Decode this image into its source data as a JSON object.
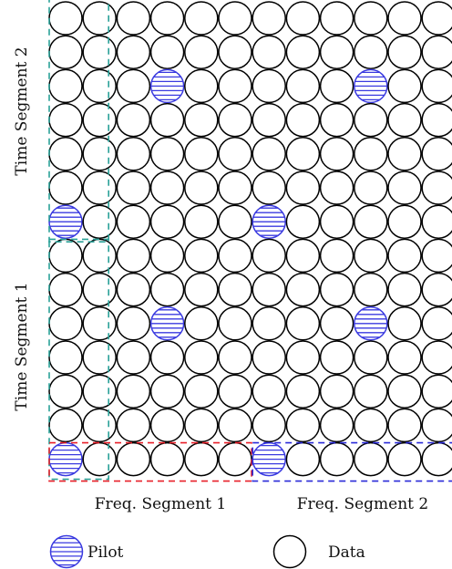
{
  "grid": {
    "rows": 14,
    "cols": 12
  },
  "pilots": [
    {
      "row": 2,
      "col": 3
    },
    {
      "row": 2,
      "col": 9
    },
    {
      "row": 6,
      "col": 0
    },
    {
      "row": 6,
      "col": 6
    },
    {
      "row": 9,
      "col": 3
    },
    {
      "row": 9,
      "col": 9
    },
    {
      "row": 13,
      "col": 0
    },
    {
      "row": 13,
      "col": 6
    }
  ],
  "segments": {
    "time_segment_1": {
      "label": "Time Segment 1",
      "rows": [
        7,
        13
      ],
      "cols": [
        0,
        1
      ],
      "color": "#2aa198"
    },
    "time_segment_2": {
      "label": "Time Segment 2",
      "rows": [
        0,
        6
      ],
      "cols": [
        0,
        1
      ],
      "color": "#2aa198"
    },
    "freq_segment_1": {
      "label": "Freq. Segment 1",
      "rows": [
        13,
        13
      ],
      "cols": [
        0,
        5
      ],
      "color": "#e8202a"
    },
    "freq_segment_2": {
      "label": "Freq. Segment 2",
      "rows": [
        13,
        13
      ],
      "cols": [
        6,
        11
      ],
      "color": "#2a2ad8"
    }
  },
  "colors": {
    "pilot": "#3a3ae0",
    "data": "#000000"
  },
  "legend": {
    "pilot_label": "Pilot",
    "data_label": "Data"
  }
}
